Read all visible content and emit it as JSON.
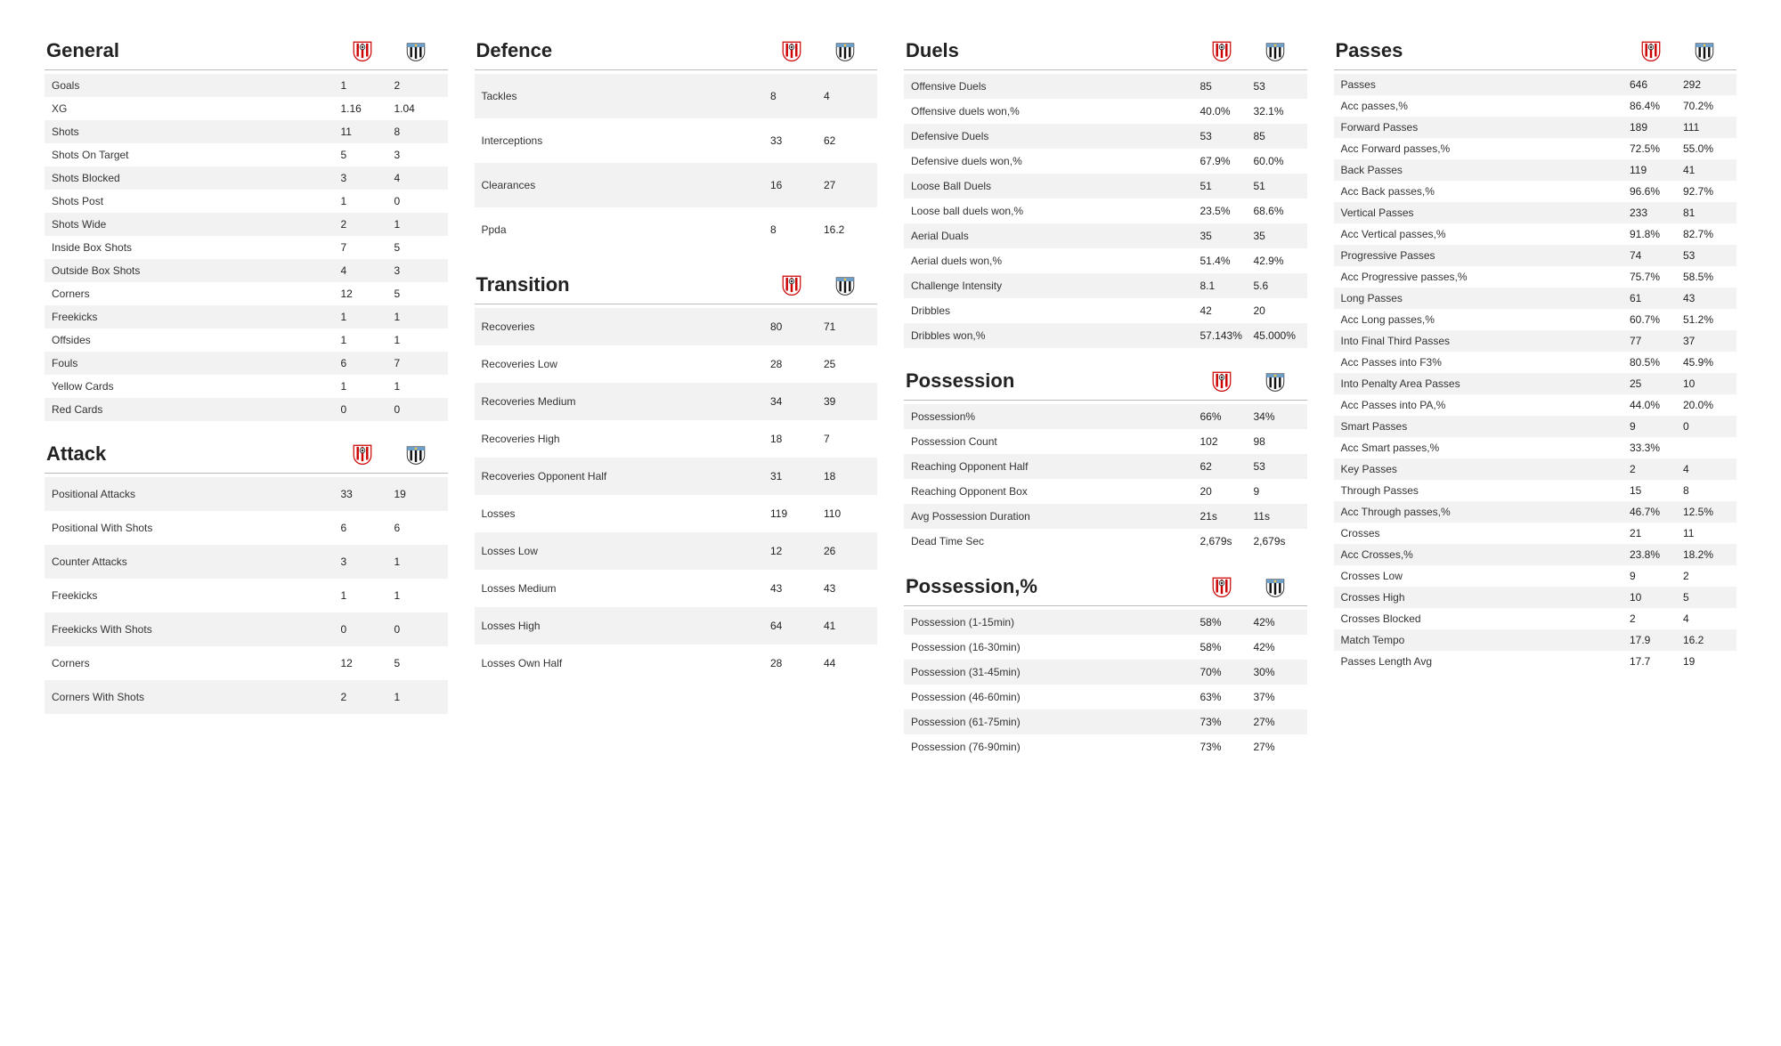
{
  "teams": {
    "home": "Southampton",
    "away": "Newcastle"
  },
  "sections": {
    "general": {
      "title": "General",
      "rows": [
        {
          "label": "Goals",
          "h": "1",
          "a": "2"
        },
        {
          "label": "XG",
          "h": "1.16",
          "a": "1.04"
        },
        {
          "label": "Shots",
          "h": "11",
          "a": "8"
        },
        {
          "label": "Shots On Target",
          "h": "5",
          "a": "3"
        },
        {
          "label": "Shots Blocked",
          "h": "3",
          "a": "4"
        },
        {
          "label": "Shots Post",
          "h": "1",
          "a": "0"
        },
        {
          "label": "Shots Wide",
          "h": "2",
          "a": "1"
        },
        {
          "label": "Inside Box Shots",
          "h": "7",
          "a": "5"
        },
        {
          "label": "Outside Box Shots",
          "h": "4",
          "a": "3"
        },
        {
          "label": "Corners",
          "h": "12",
          "a": "5"
        },
        {
          "label": "Freekicks",
          "h": "1",
          "a": "1"
        },
        {
          "label": "Offsides",
          "h": "1",
          "a": "1"
        },
        {
          "label": "Fouls",
          "h": "6",
          "a": "7"
        },
        {
          "label": "Yellow Cards",
          "h": "1",
          "a": "1"
        },
        {
          "label": "Red Cards",
          "h": "0",
          "a": "0"
        }
      ]
    },
    "attack": {
      "title": "Attack",
      "rows": [
        {
          "label": "Positional Attacks",
          "h": "33",
          "a": "19"
        },
        {
          "label": "Positional With Shots",
          "h": "6",
          "a": "6"
        },
        {
          "label": "Counter Attacks",
          "h": "3",
          "a": "1"
        },
        {
          "label": "Freekicks",
          "h": "1",
          "a": "1"
        },
        {
          "label": "Freekicks With Shots",
          "h": "0",
          "a": "0"
        },
        {
          "label": "Corners",
          "h": "12",
          "a": "5"
        },
        {
          "label": "Corners With Shots",
          "h": "2",
          "a": "1"
        }
      ]
    },
    "defence": {
      "title": "Defence",
      "rows": [
        {
          "label": "Tackles",
          "h": "8",
          "a": "4"
        },
        {
          "label": "Interceptions",
          "h": "33",
          "a": "62"
        },
        {
          "label": "Clearances",
          "h": "16",
          "a": "27"
        },
        {
          "label": "Ppda",
          "h": "8",
          "a": "16.2"
        }
      ]
    },
    "transition": {
      "title": "Transition",
      "rows": [
        {
          "label": "Recoveries",
          "h": "80",
          "a": "71"
        },
        {
          "label": "Recoveries Low",
          "h": "28",
          "a": "25"
        },
        {
          "label": "Recoveries Medium",
          "h": "34",
          "a": "39"
        },
        {
          "label": "Recoveries High",
          "h": "18",
          "a": "7"
        },
        {
          "label": "Recoveries Opponent Half",
          "h": "31",
          "a": "18"
        },
        {
          "label": "Losses",
          "h": "119",
          "a": "110"
        },
        {
          "label": "Losses Low",
          "h": "12",
          "a": "26"
        },
        {
          "label": "Losses Medium",
          "h": "43",
          "a": "43"
        },
        {
          "label": "Losses High",
          "h": "64",
          "a": "41"
        },
        {
          "label": "Losses Own Half",
          "h": "28",
          "a": "44"
        }
      ]
    },
    "duels": {
      "title": "Duels",
      "rows": [
        {
          "label": "Offensive Duels",
          "h": "85",
          "a": "53"
        },
        {
          "label": "Offensive duels won,%",
          "h": "40.0%",
          "a": "32.1%"
        },
        {
          "label": "Defensive Duels",
          "h": "53",
          "a": "85"
        },
        {
          "label": "Defensive duels won,%",
          "h": "67.9%",
          "a": "60.0%"
        },
        {
          "label": "Loose Ball Duels",
          "h": "51",
          "a": "51"
        },
        {
          "label": "Loose ball duels won,%",
          "h": "23.5%",
          "a": "68.6%"
        },
        {
          "label": "Aerial Duals",
          "h": "35",
          "a": "35"
        },
        {
          "label": "Aerial duels won,%",
          "h": "51.4%",
          "a": "42.9%"
        },
        {
          "label": "Challenge Intensity",
          "h": "8.1",
          "a": "5.6"
        },
        {
          "label": "Dribbles",
          "h": "42",
          "a": "20"
        },
        {
          "label": "Dribbles won,%",
          "h": "57.143%",
          "a": "45.000%"
        }
      ]
    },
    "possession": {
      "title": "Possession",
      "rows": [
        {
          "label": "Possession%",
          "h": "66%",
          "a": "34%"
        },
        {
          "label": "Possession Count",
          "h": "102",
          "a": "98"
        },
        {
          "label": "Reaching Opponent Half",
          "h": "62",
          "a": "53"
        },
        {
          "label": "Reaching Opponent Box",
          "h": "20",
          "a": "9"
        },
        {
          "label": "Avg Possession Duration",
          "h": "21s",
          "a": "11s"
        },
        {
          "label": "Dead Time Sec",
          "h": "2,679s",
          "a": "2,679s"
        }
      ]
    },
    "possessionPct": {
      "title": "Possession,%",
      "rows": [
        {
          "label": "Possession (1-15min)",
          "h": "58%",
          "a": "42%"
        },
        {
          "label": "Possession (16-30min)",
          "h": "58%",
          "a": "42%"
        },
        {
          "label": "Possession (31-45min)",
          "h": "70%",
          "a": "30%"
        },
        {
          "label": "Possession (46-60min)",
          "h": "63%",
          "a": "37%"
        },
        {
          "label": "Possession (61-75min)",
          "h": "73%",
          "a": "27%"
        },
        {
          "label": "Possession (76-90min)",
          "h": "73%",
          "a": "27%"
        }
      ]
    },
    "passes": {
      "title": "Passes",
      "rows": [
        {
          "label": "Passes",
          "h": "646",
          "a": "292"
        },
        {
          "label": "Acc passes,%",
          "h": "86.4%",
          "a": "70.2%"
        },
        {
          "label": "Forward Passes",
          "h": "189",
          "a": "111"
        },
        {
          "label": "Acc Forward passes,%",
          "h": "72.5%",
          "a": "55.0%"
        },
        {
          "label": "Back Passes",
          "h": "119",
          "a": "41"
        },
        {
          "label": "Acc Back passes,%",
          "h": "96.6%",
          "a": "92.7%"
        },
        {
          "label": "Vertical Passes",
          "h": "233",
          "a": "81"
        },
        {
          "label": "Acc Vertical passes,%",
          "h": "91.8%",
          "a": "82.7%"
        },
        {
          "label": "Progressive Passes",
          "h": "74",
          "a": "53"
        },
        {
          "label": "Acc Progressive passes,%",
          "h": "75.7%",
          "a": "58.5%"
        },
        {
          "label": "Long Passes",
          "h": "61",
          "a": "43"
        },
        {
          "label": "Acc Long passes,%",
          "h": "60.7%",
          "a": "51.2%"
        },
        {
          "label": "Into Final Third Passes",
          "h": "77",
          "a": "37"
        },
        {
          "label": "Acc Passes into F3%",
          "h": "80.5%",
          "a": "45.9%"
        },
        {
          "label": "Into Penalty Area Passes",
          "h": "25",
          "a": "10"
        },
        {
          "label": "Acc Passes into PA,%",
          "h": "44.0%",
          "a": "20.0%"
        },
        {
          "label": "Smart Passes",
          "h": "9",
          "a": "0"
        },
        {
          "label": "Acc Smart passes,%",
          "h": "33.3%",
          "a": ""
        },
        {
          "label": "Key Passes",
          "h": "2",
          "a": "4"
        },
        {
          "label": "Through Passes",
          "h": "15",
          "a": "8"
        },
        {
          "label": "Acc Through passes,%",
          "h": "46.7%",
          "a": "12.5%"
        },
        {
          "label": "Crosses",
          "h": "21",
          "a": "11"
        },
        {
          "label": "Acc Crosses,%",
          "h": "23.8%",
          "a": "18.2%"
        },
        {
          "label": "Crosses Low",
          "h": "9",
          "a": "2"
        },
        {
          "label": "Crosses High",
          "h": "10",
          "a": "5"
        },
        {
          "label": "Crosses Blocked",
          "h": "2",
          "a": "4"
        },
        {
          "label": "Match Tempo",
          "h": "17.9",
          "a": "16.2"
        },
        {
          "label": "Passes Length Avg",
          "h": "17.7",
          "a": "19"
        }
      ]
    }
  },
  "rowPaddingBySection": {
    "general": "6px 6px 6px 8px",
    "attack": "12px 6px 12px 8px",
    "defence": "18px 6px 18px 8px",
    "transition": "14px 6px 14px 8px",
    "duels": "7px 6px 7px 8px",
    "possession": "7px 6px 7px 8px",
    "possessionPct": "7px 6px 7px 8px",
    "passes": "5px 6px 5px 8px"
  },
  "layout": [
    [
      "general",
      "attack"
    ],
    [
      "defence",
      "transition"
    ],
    [
      "duels",
      "possession",
      "possessionPct"
    ],
    [
      "passes"
    ]
  ]
}
